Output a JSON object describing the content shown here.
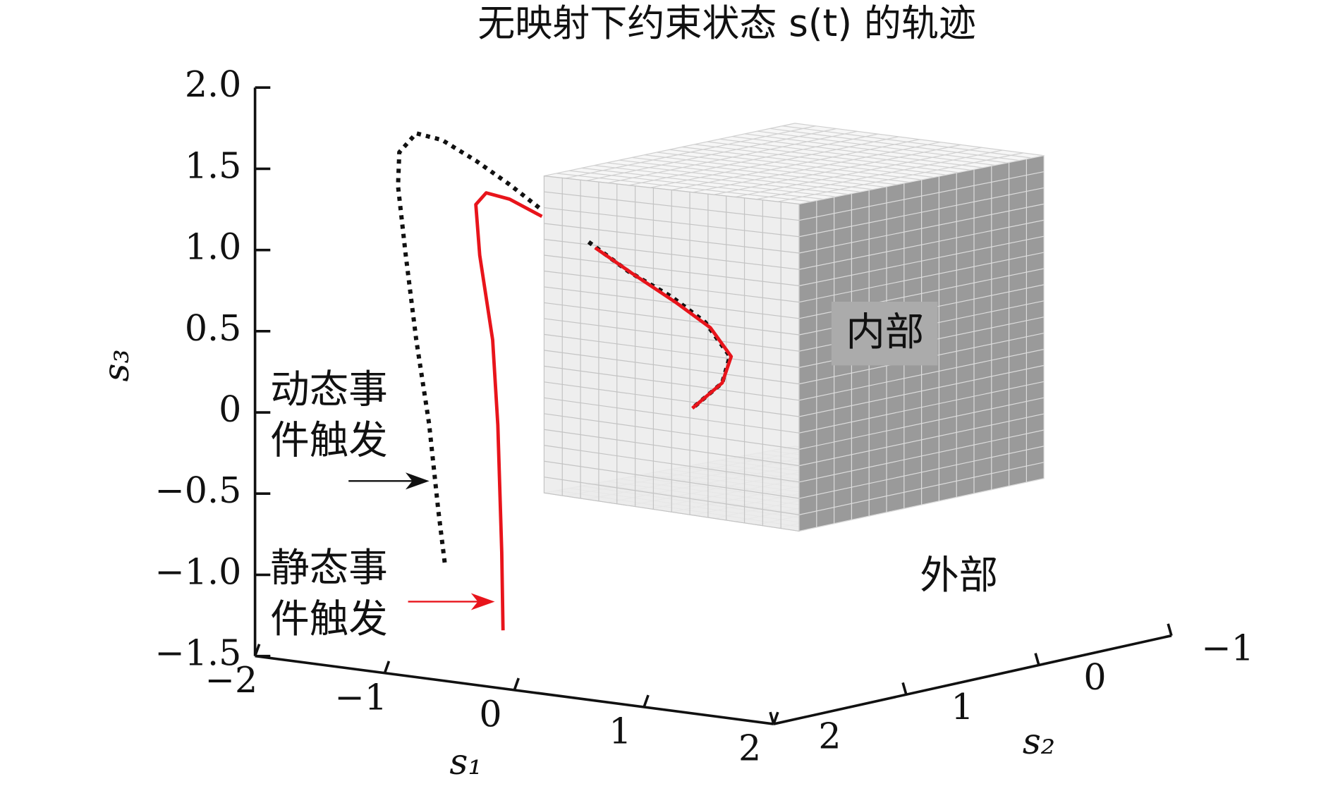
{
  "chart_data": {
    "type": "line3d",
    "title": "无映射下约束状态 s(t) 的轨迹",
    "xlabel": "s₁",
    "ylabel": "s₂",
    "zlabel": "s₃",
    "xlim": [
      -2,
      2
    ],
    "ylim": [
      -1,
      2
    ],
    "zlim": [
      -1.5,
      2
    ],
    "xticks": [
      {
        "value": -2,
        "label": "−2"
      },
      {
        "value": -1,
        "label": "−1"
      },
      0,
      1,
      2
    ],
    "yticks": [
      {
        "value": -1,
        "label": "−1"
      },
      0,
      1,
      2
    ],
    "zticks": [
      {
        "value": -1.5,
        "label": "−1.5"
      },
      {
        "value": -1,
        "label": "−1.0"
      },
      {
        "value": -0.5,
        "label": "−0.5"
      },
      0,
      {
        "value": 0.5,
        "label": "0.5"
      },
      {
        "value": 1,
        "label": "1.0"
      },
      {
        "value": 1.5,
        "label": "1.5"
      },
      {
        "value": 2,
        "label": "2.0"
      }
    ],
    "series": [
      {
        "name": "动态事件触发",
        "color": "#111111",
        "style": "dotted",
        "x": [
          -1.56,
          -1.61,
          -1.68,
          -1.78,
          -1.86,
          -1.92,
          -1.91,
          -1.78,
          -1.58,
          -1.32,
          -1.06,
          -0.83,
          null,
          -0.45,
          -0.14,
          0.19,
          0.45,
          0.64,
          0.58,
          0.35
        ],
        "y": [
          1,
          1,
          1,
          1,
          1,
          1,
          1,
          1,
          1,
          1,
          1,
          1,
          null,
          1,
          1,
          1,
          1,
          1,
          1,
          1
        ],
        "z": [
          -1.06,
          -0.74,
          -0.22,
          0.29,
          0.8,
          1.22,
          1.43,
          1.56,
          1.54,
          1.44,
          1.32,
          1.2,
          null,
          1.03,
          0.88,
          0.76,
          0.63,
          0.44,
          0.27,
          0.09
        ]
      },
      {
        "name": "静态事件触发",
        "color": "#e8141b",
        "style": "solid",
        "x": [
          -1.11,
          -1.12,
          -1.15,
          -1.19,
          -1.29,
          -1.32,
          -1.24,
          -1.06,
          -0.81,
          null,
          -0.4,
          -0.11,
          0.22,
          0.49,
          0.65,
          0.58,
          0.35
        ],
        "y": [
          1,
          1,
          1,
          1,
          1,
          1,
          1,
          1,
          1,
          null,
          1,
          1,
          1,
          1,
          1,
          1,
          1
        ],
        "z": [
          -1.43,
          -0.95,
          -0.17,
          0.35,
          0.86,
          1.17,
          1.25,
          1.23,
          1.15,
          null,
          1.0,
          0.87,
          0.73,
          0.6,
          0.44,
          0.27,
          0.09
        ]
      }
    ],
    "annotations": [
      {
        "text": "内部"
      },
      {
        "text": "外部"
      }
    ]
  }
}
